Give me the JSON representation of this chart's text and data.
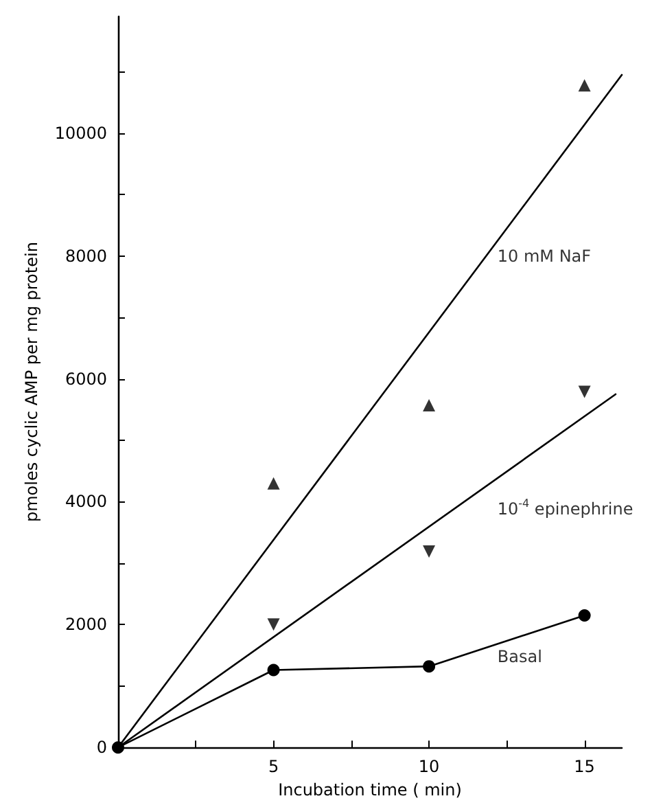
{
  "chart_data": {
    "type": "scatter",
    "xlabel": "Incubation time ( min)",
    "ylabel": "pmoles cyclic AMP per mg protein",
    "xlim": [
      0,
      16.2
    ],
    "ylim": [
      0,
      11900
    ],
    "xticks": [
      {
        "value": 2.5,
        "label": null
      },
      5,
      {
        "value": 7.5,
        "label": null
      },
      10,
      {
        "value": 12.5,
        "label": null
      },
      15
    ],
    "yticks": [
      0,
      {
        "value": 1000,
        "label": null
      },
      2000,
      {
        "value": 3000,
        "label": null
      },
      4000,
      {
        "value": 5000,
        "label": null
      },
      6000,
      {
        "value": 7000,
        "label": null
      },
      8000,
      {
        "value": 9000,
        "label": null
      },
      10000,
      {
        "value": 11000,
        "label": null
      }
    ],
    "grid": false,
    "series": [
      {
        "marker": "triangle",
        "color": "#000000",
        "x": [
          5,
          10,
          15
        ],
        "values": [
          4300,
          5570,
          10780
        ]
      },
      {
        "type": "line",
        "line_style": "solid",
        "color": "#000000",
        "x": [
          0,
          16.2
        ],
        "values": [
          0,
          10950
        ]
      },
      {
        "marker": "triangle_down",
        "color": "#000000",
        "x": [
          5,
          10,
          15
        ],
        "values": [
          2000,
          3190,
          5790
        ]
      },
      {
        "type": "line",
        "line_style": "solid",
        "color": "#000000",
        "x": [
          0,
          16
        ],
        "values": [
          0,
          5750
        ]
      },
      {
        "type": "line",
        "marker": "circle",
        "line_style": "solid",
        "color": "#000000",
        "x": [
          0,
          5,
          10,
          15
        ],
        "values": [
          0,
          1260,
          1320,
          2150
        ]
      }
    ],
    "annotations": [
      "10 mM NaF",
      "10$^{-4}$ epinephrine",
      "Basal"
    ]
  }
}
